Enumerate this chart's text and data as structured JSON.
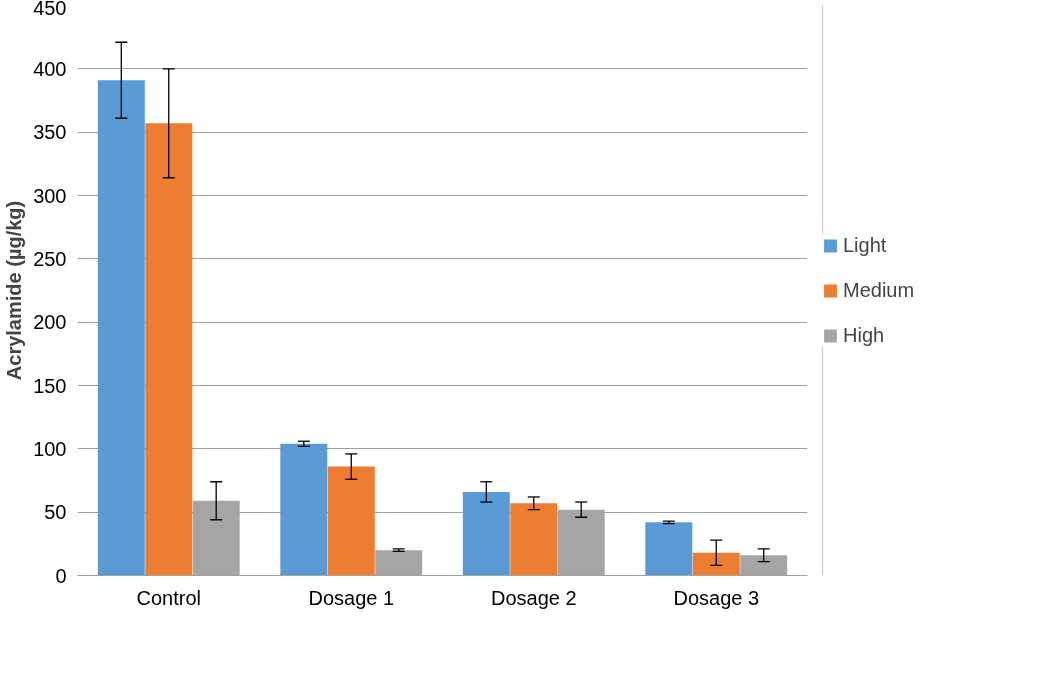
{
  "chart_data": {
    "type": "bar",
    "ylabel": "Acrylamide (µg/kg)",
    "categories": [
      "Control",
      "Dosage 1",
      "Dosage 2",
      "Dosage 3"
    ],
    "series": [
      {
        "name": "Light",
        "color": "#5b9bd5",
        "values": [
          391,
          104,
          66,
          42
        ],
        "errors": [
          30,
          2,
          8,
          1
        ]
      },
      {
        "name": "Medium",
        "color": "#ed7d31",
        "values": [
          357,
          86,
          57,
          18
        ],
        "errors": [
          43,
          10,
          5,
          10
        ]
      },
      {
        "name": "High",
        "color": "#a5a5a5",
        "values": [
          59,
          20,
          52,
          16
        ],
        "errors": [
          15,
          1,
          6,
          5
        ]
      }
    ],
    "ylim": [
      0,
      450
    ],
    "yticks": [
      0,
      50,
      100,
      150,
      200,
      250,
      300,
      350,
      400,
      450
    ],
    "grid": "y",
    "legend": "right"
  }
}
